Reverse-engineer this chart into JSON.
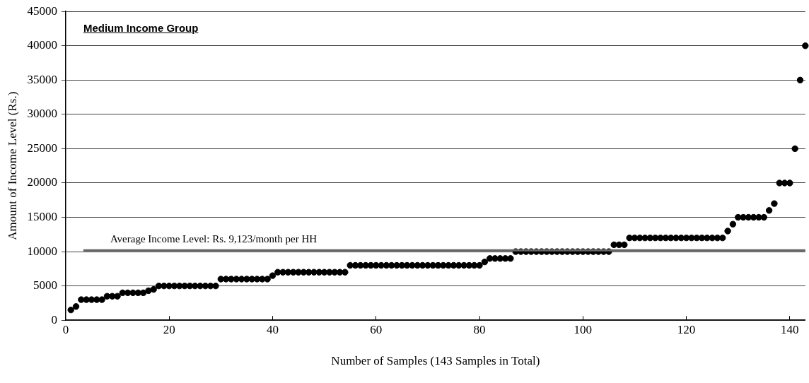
{
  "chart_data": {
    "type": "scatter",
    "title": "Medium Income Group",
    "xlabel": "Number of Samples (143 Samples in Total)",
    "ylabel": "Amount of Income Level (Rs.)",
    "x": [
      1,
      2,
      3,
      4,
      5,
      6,
      7,
      8,
      9,
      10,
      11,
      12,
      13,
      14,
      15,
      16,
      17,
      18,
      19,
      20,
      21,
      22,
      23,
      24,
      25,
      26,
      27,
      28,
      29,
      30,
      31,
      32,
      33,
      34,
      35,
      36,
      37,
      38,
      39,
      40,
      41,
      42,
      43,
      44,
      45,
      46,
      47,
      48,
      49,
      50,
      51,
      52,
      53,
      54,
      55,
      56,
      57,
      58,
      59,
      60,
      61,
      62,
      63,
      64,
      65,
      66,
      67,
      68,
      69,
      70,
      71,
      72,
      73,
      74,
      75,
      76,
      77,
      78,
      79,
      80,
      81,
      82,
      83,
      84,
      85,
      86,
      87,
      88,
      89,
      90,
      91,
      92,
      93,
      94,
      95,
      96,
      97,
      98,
      99,
      100,
      101,
      102,
      103,
      104,
      105,
      106,
      107,
      108,
      109,
      110,
      111,
      112,
      113,
      114,
      115,
      116,
      117,
      118,
      119,
      120,
      121,
      122,
      123,
      124,
      125,
      126,
      127,
      128,
      129,
      130,
      131,
      132,
      133,
      134,
      135,
      136,
      137,
      138,
      139,
      140,
      141,
      142,
      143
    ],
    "series": [
      {
        "color": "#000000",
        "values": [
          1500,
          2000,
          3000,
          3000,
          3000,
          3000,
          3000,
          3500,
          3500,
          3500,
          4000,
          4000,
          4000,
          4000,
          4000,
          4300,
          4500,
          5000,
          5000,
          5000,
          5000,
          5000,
          5000,
          5000,
          5000,
          5000,
          5000,
          5000,
          5000,
          6000,
          6000,
          6000,
          6000,
          6000,
          6000,
          6000,
          6000,
          6000,
          6000,
          6500,
          7000,
          7000,
          7000,
          7000,
          7000,
          7000,
          7000,
          7000,
          7000,
          7000,
          7000,
          7000,
          7000,
          7000,
          8000,
          8000,
          8000,
          8000,
          8000,
          8000,
          8000,
          8000,
          8000,
          8000,
          8000,
          8000,
          8000,
          8000,
          8000,
          8000,
          8000,
          8000,
          8000,
          8000,
          8000,
          8000,
          8000,
          8000,
          8000,
          8000,
          8500,
          9000,
          9000,
          9000,
          9000,
          9000,
          10000,
          10000,
          10000,
          10000,
          10000,
          10000,
          10000,
          10000,
          10000,
          10000,
          10000,
          10000,
          10000,
          10000,
          10000,
          10000,
          10000,
          10000,
          10000,
          11000,
          11000,
          11000,
          12000,
          12000,
          12000,
          12000,
          12000,
          12000,
          12000,
          12000,
          12000,
          12000,
          12000,
          12000,
          12000,
          12000,
          12000,
          12000,
          12000,
          12000,
          12000,
          13000,
          14000,
          15000,
          15000,
          15000,
          15000,
          15000,
          15000,
          16000,
          17000,
          20000,
          20000,
          20000,
          25000,
          35000,
          40000
        ]
      }
    ],
    "xlim": [
      0,
      143
    ],
    "xticks": [
      0,
      20,
      40,
      60,
      80,
      100,
      120,
      140
    ],
    "ylim": [
      0,
      45000
    ],
    "yticks": [
      0,
      5000,
      10000,
      15000,
      20000,
      25000,
      30000,
      35000,
      40000,
      45000
    ],
    "ref_lines": [
      {
        "axis": "y",
        "value": 10200,
        "label": "Average Income Level: Rs. 9,123/month per HH",
        "color": "#666666"
      }
    ],
    "grid": "y",
    "legend": false,
    "marker": "circle"
  }
}
